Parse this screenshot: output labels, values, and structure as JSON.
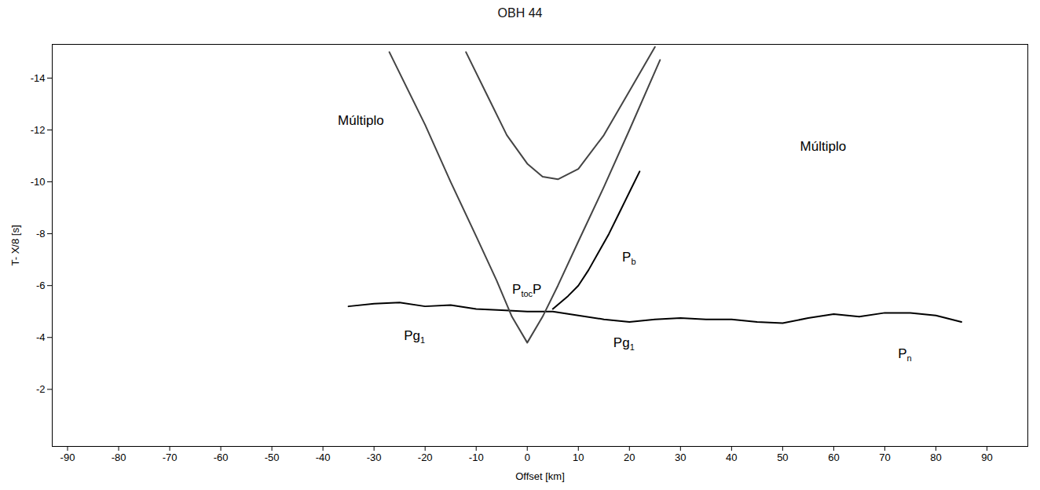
{
  "chart_data": {
    "type": "line",
    "title": "OBH 44",
    "x_label": "Offset [km]",
    "y_label": "T- X/8 [s]",
    "xlim": [
      -93,
      98
    ],
    "xticks": [
      -90,
      -80,
      -70,
      -60,
      -50,
      -40,
      -30,
      -20,
      -10,
      0,
      10,
      20,
      30,
      40,
      50,
      60,
      70,
      80,
      90
    ],
    "ylim": [
      0.2,
      -15.3
    ],
    "yticks": [
      -14,
      -12,
      -10,
      -8,
      -6,
      -4,
      -2
    ],
    "grid": false,
    "series": [
      {
        "color": "#000000",
        "line_style": "solid",
        "x": [
          -35,
          -30,
          -25,
          -20,
          -15,
          -10,
          -5,
          0,
          5,
          10,
          15,
          20,
          25,
          30,
          35,
          40,
          45,
          50,
          55,
          60,
          65,
          70,
          75,
          80,
          85
        ],
        "values": [
          -5.2,
          -5.3,
          -5.35,
          -5.2,
          -5.25,
          -5.1,
          -5.05,
          -5.0,
          -5.0,
          -4.85,
          -4.7,
          -4.6,
          -4.7,
          -4.75,
          -4.7,
          -4.7,
          -4.6,
          -4.55,
          -4.75,
          -4.9,
          -4.8,
          -4.95,
          -4.95,
          -4.85,
          -4.6
        ]
      },
      {
        "color": "#000000",
        "line_style": "solid",
        "x": [
          5,
          8,
          10,
          12,
          14,
          16,
          18,
          20,
          22
        ],
        "values": [
          -5.1,
          -5.6,
          -6.0,
          -6.6,
          -7.3,
          -8.0,
          -8.8,
          -9.6,
          -10.4
        ]
      },
      {
        "color": "#444444",
        "line_style": "solid",
        "x": [
          -27,
          -20,
          -15,
          -10,
          -6,
          -3,
          0,
          3,
          6,
          10,
          15,
          20,
          26
        ],
        "values": [
          -15,
          -12.2,
          -10.0,
          -7.9,
          -6.2,
          -4.8,
          -3.8,
          -4.8,
          -6.0,
          -7.7,
          -9.8,
          -12.0,
          -14.7
        ]
      },
      {
        "color": "#444444",
        "line_style": "solid",
        "x": [
          -12,
          -8,
          -4,
          0,
          3,
          6,
          10,
          15,
          20,
          25
        ],
        "values": [
          -15,
          -13.4,
          -11.8,
          -10.7,
          -10.2,
          -10.1,
          -10.5,
          -11.8,
          -13.5,
          -15.2
        ]
      }
    ],
    "annotations": [
      {
        "text": "Múltiplo",
        "x": -32.5,
        "y": -12.3
      },
      {
        "text": "Múltiplo",
        "x": 58,
        "y": -11.3
      },
      {
        "text": "P",
        "subscript": "b",
        "x": 20,
        "y": -7.05
      },
      {
        "text": "P",
        "subscript": "toc",
        "suffix": "P",
        "x": 0,
        "y": -5.8
      },
      {
        "text": "Pg",
        "subscript": "1",
        "x": -22,
        "y": -4.0
      },
      {
        "text": "Pg",
        "subscript": "1",
        "x": 19,
        "y": -3.75
      },
      {
        "text": "P",
        "subscript": "n",
        "x": 74,
        "y": -3.3
      }
    ]
  }
}
